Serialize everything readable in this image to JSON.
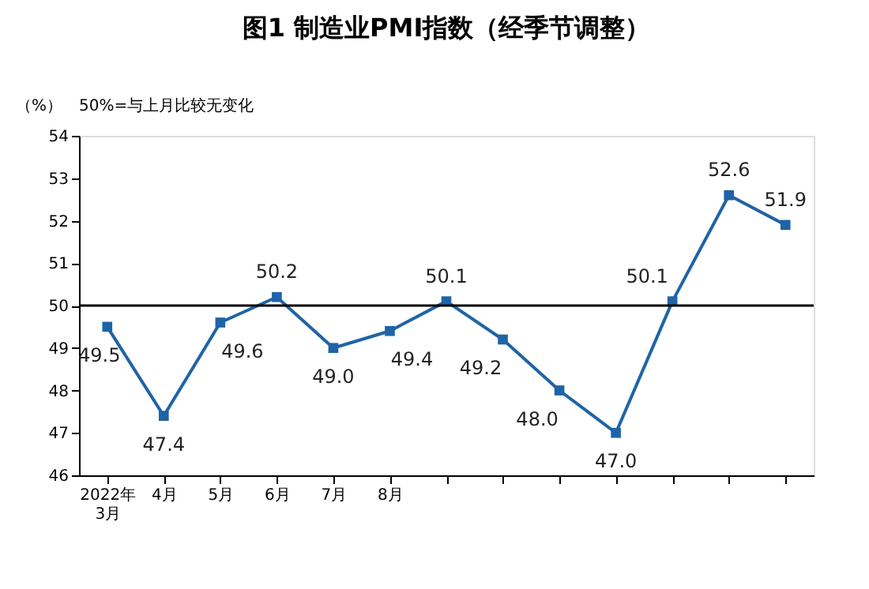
{
  "chart_data": {
    "type": "line",
    "title": "图1 制造业PMI指数（经季节调整）",
    "ylabel": "（%）",
    "annotations": [
      "50%=与上月比较无变化"
    ],
    "categories": [
      "2022年\n3月",
      "4月",
      "5月",
      "6月",
      "7月",
      "8月",
      null,
      null,
      null,
      null,
      null,
      null,
      null
    ],
    "series": [
      {
        "color": "#1f64a6",
        "values": [
          49.5,
          47.4,
          49.6,
          50.2,
          49.0,
          49.4,
          50.1,
          49.2,
          48.0,
          47.0,
          50.1,
          52.6,
          51.9
        ],
        "value_labels": [
          "49.5",
          "47.4",
          "49.6",
          "50.2",
          "49.0",
          "49.4",
          "50.1",
          "49.2",
          "48.0",
          "47.0",
          "50.1",
          "52.6",
          "51.9"
        ]
      }
    ],
    "ylim": [
      46,
      54
    ],
    "yticks": [
      46,
      47,
      48,
      49,
      50,
      51,
      52,
      53,
      54
    ],
    "ref_lines": [
      {
        "axis": "y",
        "value": 50,
        "color": "#000000",
        "line_style": "solid"
      }
    ],
    "marker": "square",
    "line_style": "solid",
    "grid": false
  }
}
